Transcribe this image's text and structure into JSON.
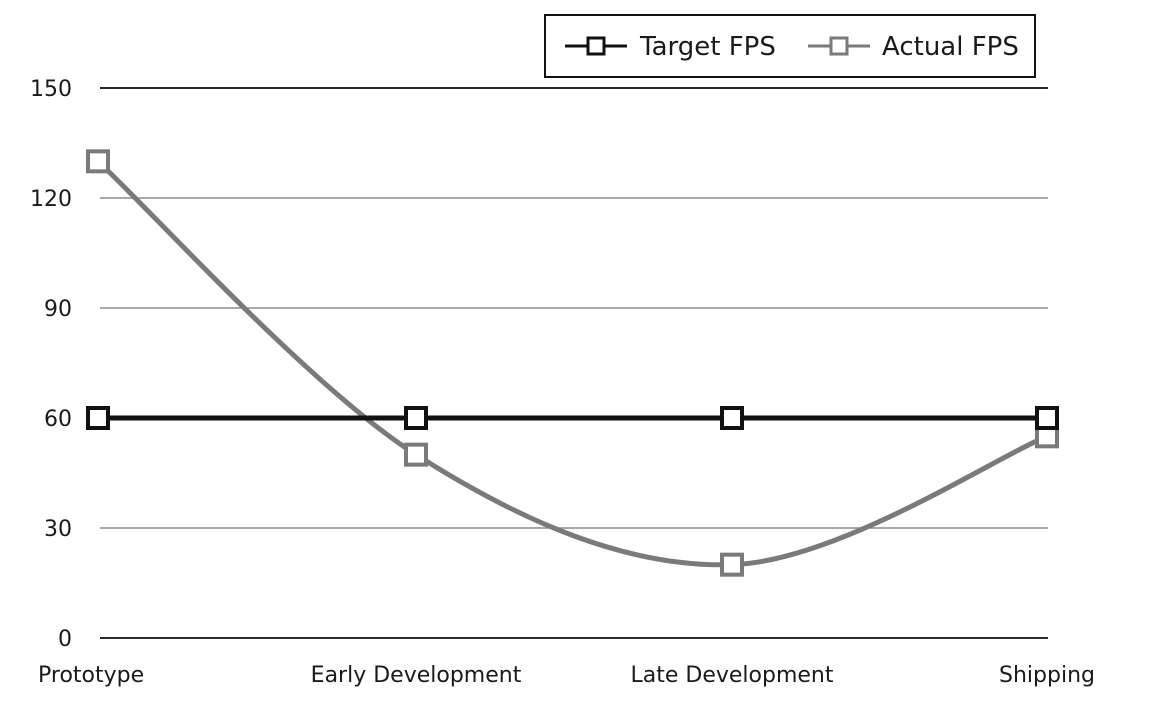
{
  "chart_data": {
    "type": "line",
    "categories": [
      "Prototype",
      "Early Development",
      "Late Development",
      "Shipping"
    ],
    "series": [
      {
        "name": "Target FPS",
        "values": [
          60,
          60,
          60,
          60
        ],
        "color": "#111111"
      },
      {
        "name": "Actual FPS",
        "values": [
          130,
          50,
          20,
          55
        ],
        "color": "#7a7a7a"
      }
    ],
    "yticks": [
      0,
      30,
      60,
      90,
      120,
      150
    ],
    "ylim": [
      0,
      150
    ],
    "grid": true,
    "legend_position": "top-right",
    "title": "",
    "xlabel": "",
    "ylabel": ""
  }
}
